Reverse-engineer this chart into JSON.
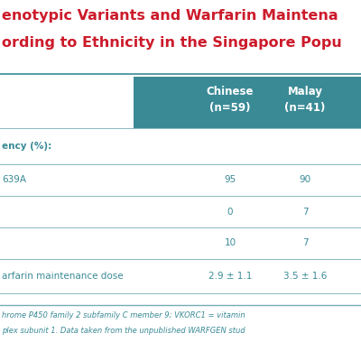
{
  "title_line1": "enotypic Variants and Warfarin Maintena",
  "title_line2": "ording to Ethnicity in the Singapore Popu",
  "title_color": "#cc1b2b",
  "header_bg": "#3a8a96",
  "header_text_color": "#ffffff",
  "col1_header": "Chinese\n(n=59)",
  "col2_header": "Malay\n(n=41)",
  "row_labels": [
    "ency (%):",
    "639A",
    "",
    "",
    "arfarin maintenance dose"
  ],
  "col1_values": [
    "",
    "95",
    "0",
    "10",
    "2.9 ± 1.1"
  ],
  "col2_values": [
    "",
    "90",
    "7",
    "7",
    "3.5 ± 1.6"
  ],
  "footer_line1": "hrome P450 family 2 subfamily C member 9; VKORC1 = vitamin",
  "footer_line2": "plex subunit 1. Data taken from the unpublished WARFGEN stud",
  "footer_color": "#3a8a96",
  "table_line_color": "#3a8a96",
  "body_text_color": "#3a8a96",
  "bg_color": "#ffffff",
  "title_separator_color": "#3a8a96",
  "footer_separator_color": "#3a8a96"
}
